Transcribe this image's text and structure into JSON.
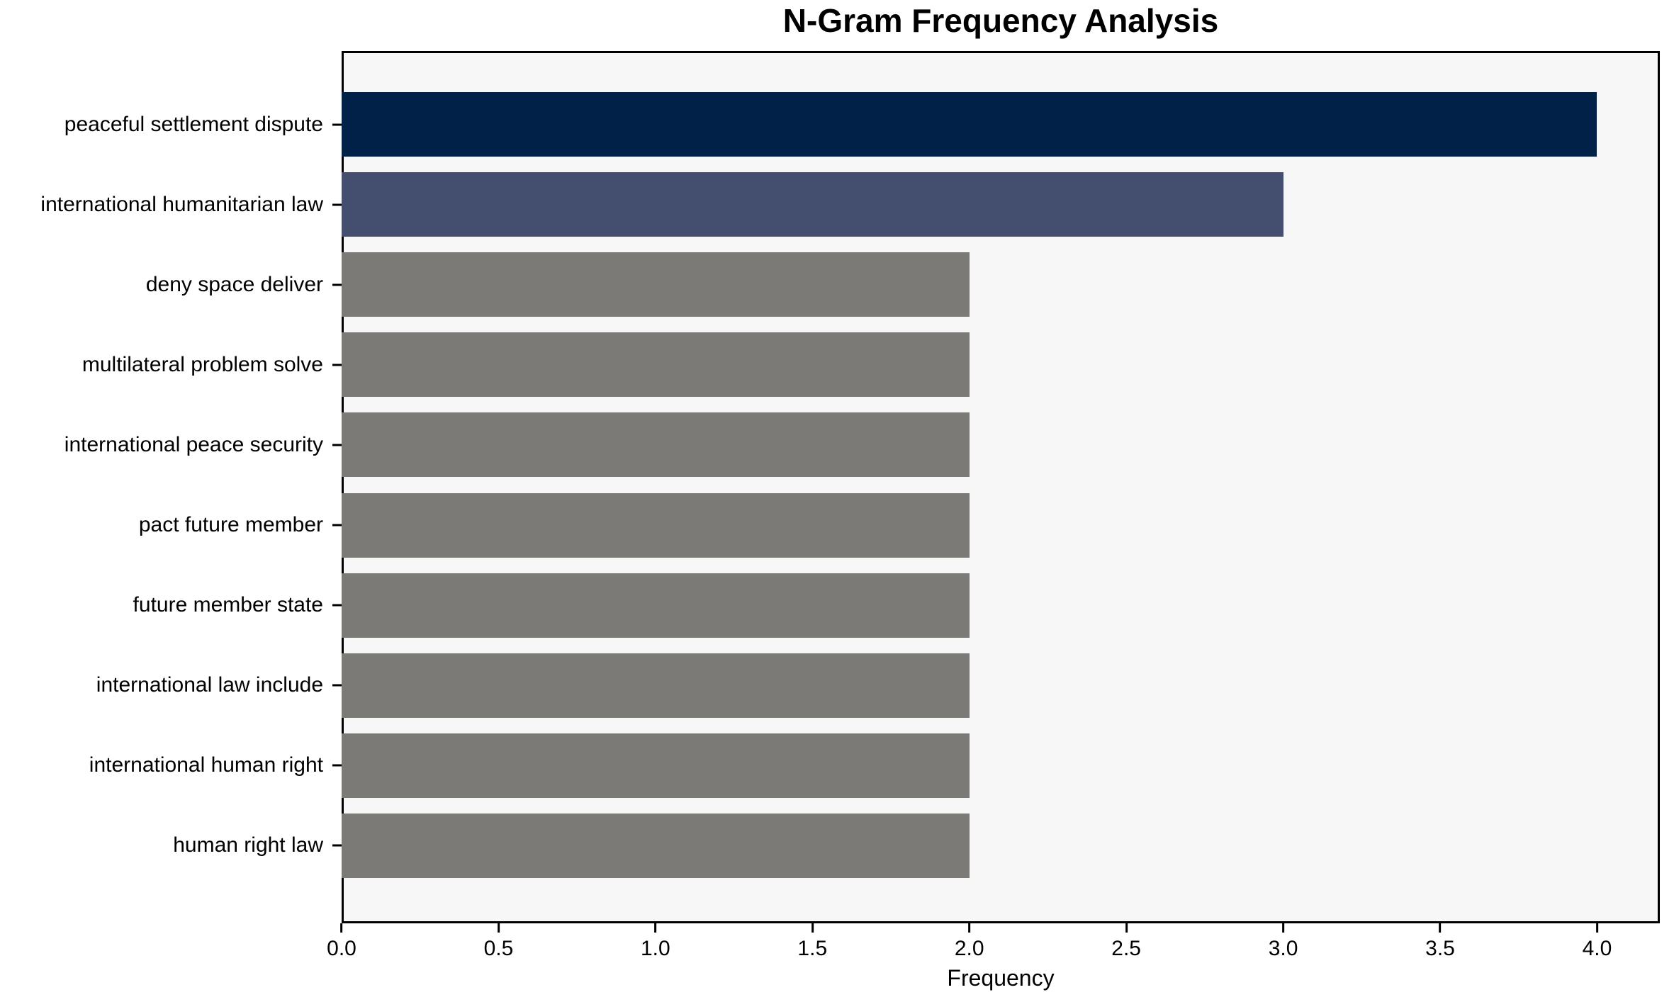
{
  "chart_data": {
    "type": "bar",
    "orientation": "horizontal",
    "title": "N-Gram Frequency Analysis",
    "xlabel": "Frequency",
    "ylabel": "",
    "categories": [
      "peaceful settlement dispute",
      "international humanitarian law",
      "deny space deliver",
      "multilateral problem solve",
      "international peace security",
      "pact future member",
      "future member state",
      "international law include",
      "international human right",
      "human right law"
    ],
    "values": [
      4,
      3,
      2,
      2,
      2,
      2,
      2,
      2,
      2,
      2
    ],
    "bar_colors": [
      "#012149",
      "#444F70",
      "#7B7A77",
      "#7B7A77",
      "#7B7A77",
      "#7B7A77",
      "#7B7A77",
      "#7B7A77",
      "#7B7A77",
      "#7B7A77"
    ],
    "xlim": [
      0,
      4.2
    ],
    "x_tick_values": [
      0.0,
      0.5,
      1.0,
      1.5,
      2.0,
      2.5,
      3.0,
      3.5,
      4.0
    ],
    "x_tick_labels": [
      "0.0",
      "0.5",
      "1.0",
      "1.5",
      "2.0",
      "2.5",
      "3.0",
      "3.5",
      "4.0"
    ],
    "grid": false,
    "legend_position": "none"
  },
  "colors": {
    "figure_background": "#FFFFFF",
    "plot_background": "#F7F7F7",
    "spine": "#000000",
    "text": "#000000"
  }
}
